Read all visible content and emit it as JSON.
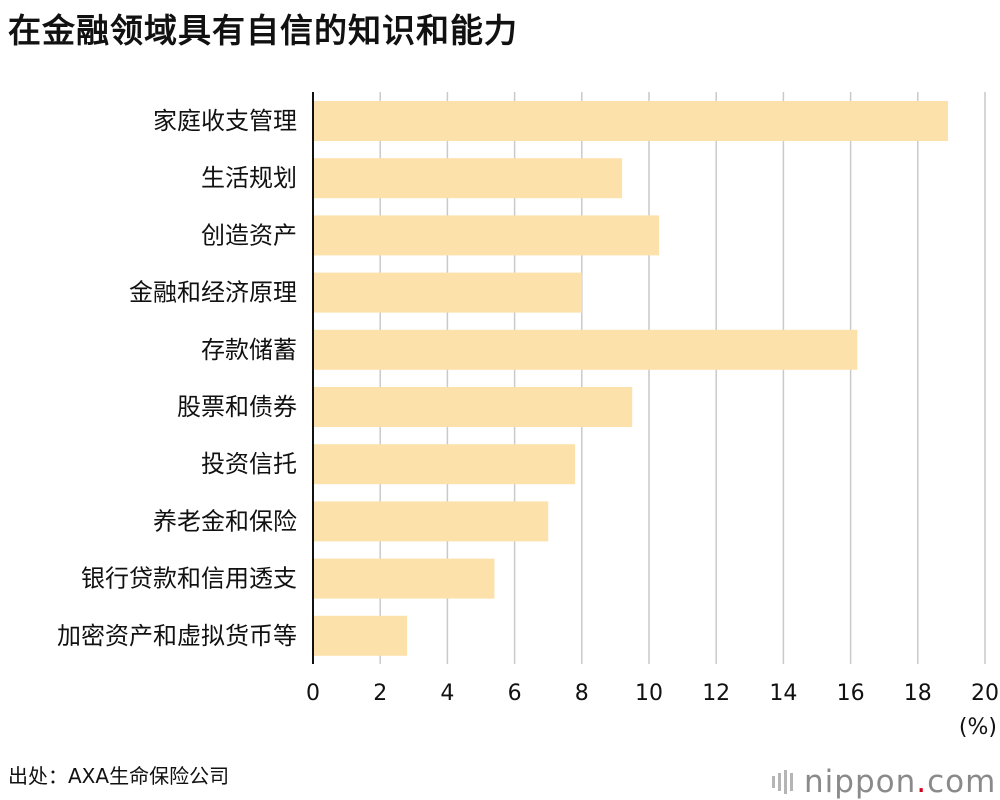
{
  "title": "在金融领域具有自信的知识和能力",
  "source": "出处：AXA生命保险公司",
  "logo": {
    "name": "nippon",
    "dot": ".",
    "tld": "com"
  },
  "colors": {
    "bar": "#fde1ab",
    "grid": "#c9c9c9",
    "axis": "#111111",
    "text": "#111111"
  },
  "chart_data": {
    "type": "bar",
    "orientation": "horizontal",
    "categories": [
      "家庭收支管理",
      "生活规划",
      "创造资产",
      "金融和经济原理",
      "存款储蓄",
      "股票和债券",
      "投资信托",
      "养老金和保险",
      "银行贷款和信用透支",
      "加密资产和虚拟货币等"
    ],
    "values": [
      18.9,
      9.2,
      10.3,
      8.0,
      16.2,
      9.5,
      7.8,
      7.0,
      5.4,
      2.8
    ],
    "xlim": [
      0,
      20
    ],
    "xticks": [
      "0",
      "2",
      "4",
      "6",
      "8",
      "10",
      "12",
      "14",
      "16",
      "18",
      "20"
    ],
    "unit": "(%)",
    "grid": true
  }
}
